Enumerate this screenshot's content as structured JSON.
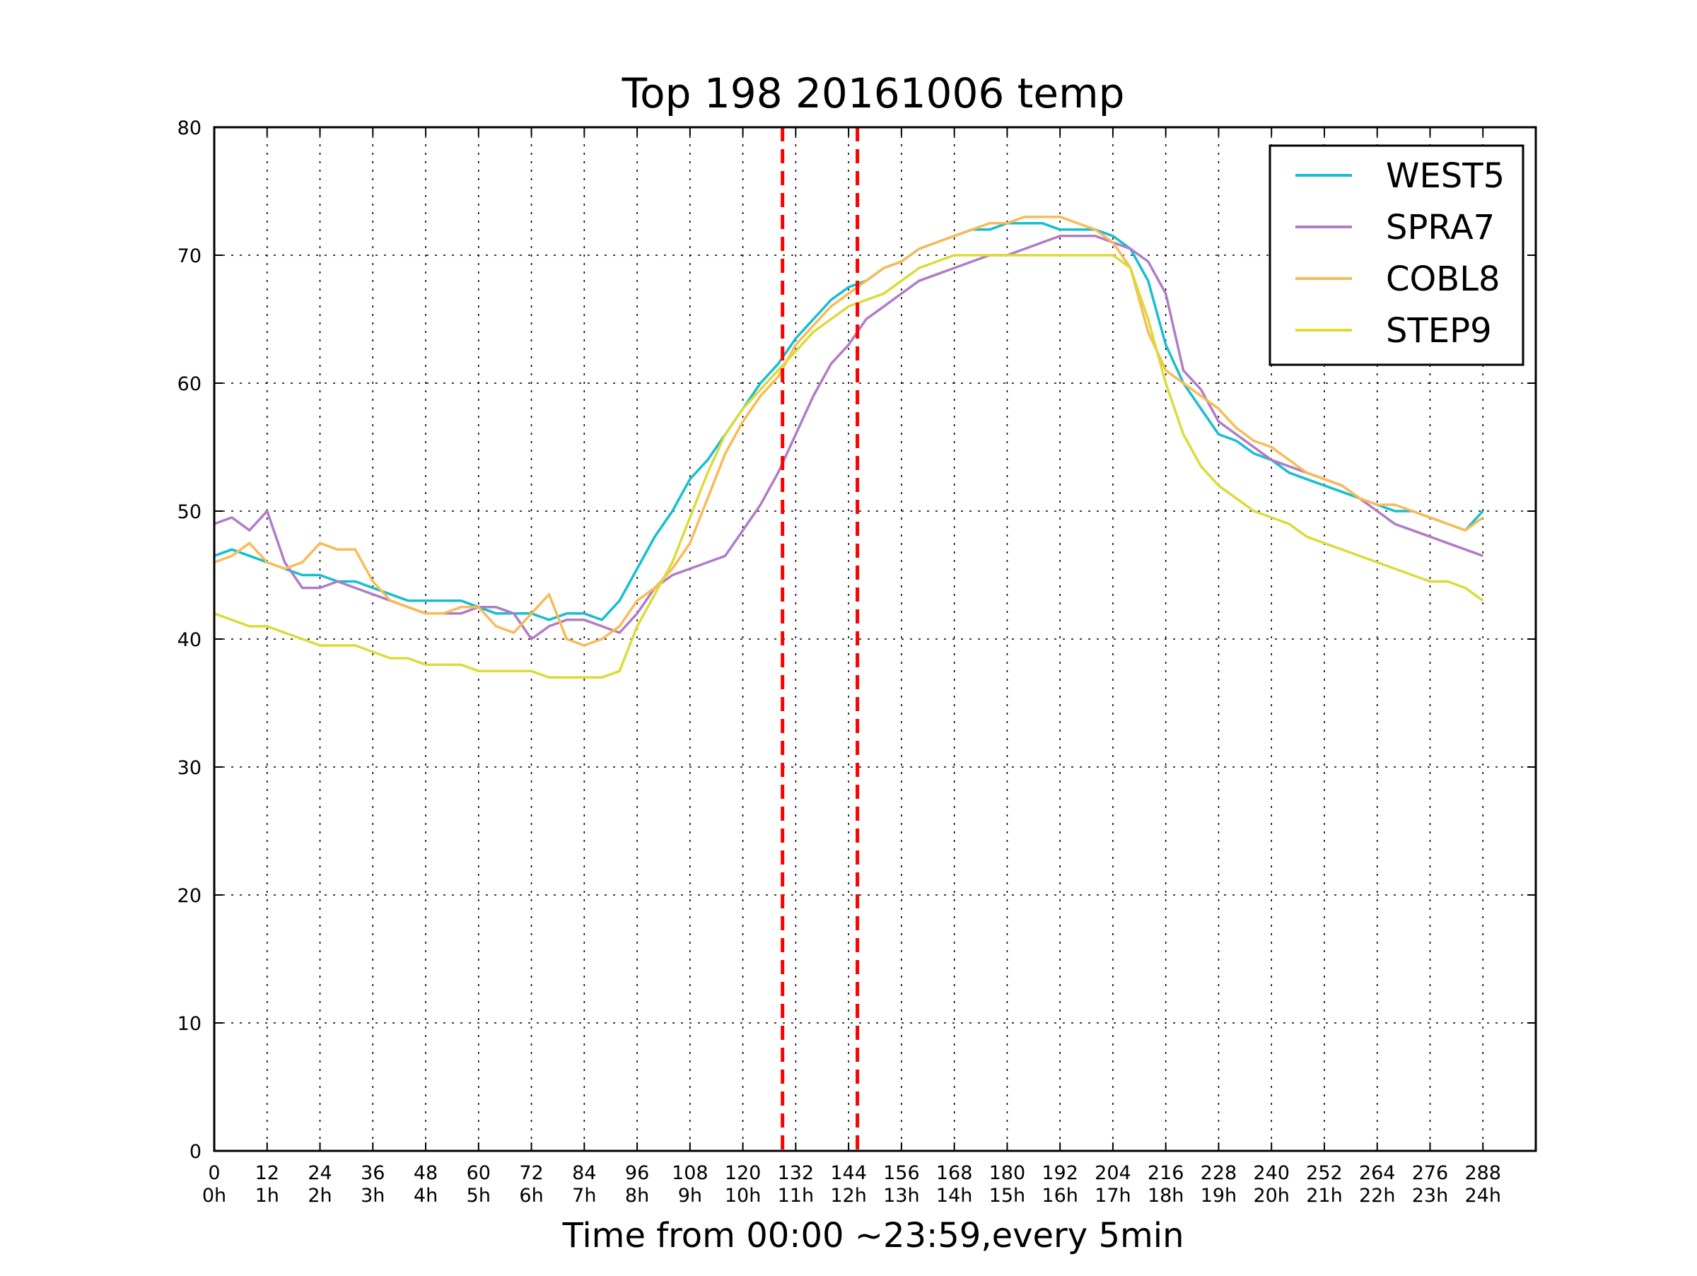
{
  "chart_data": {
    "type": "line",
    "title": "Top 198 20161006 temp",
    "xlabel": "Time from 00:00 ~23:59,every 5min",
    "ylabel": "",
    "xlim": [
      0,
      300
    ],
    "ylim": [
      0,
      80
    ],
    "grid": true,
    "legend_position": "top-right",
    "x_ticks": [
      0,
      12,
      24,
      36,
      48,
      60,
      72,
      84,
      96,
      108,
      120,
      132,
      144,
      156,
      168,
      180,
      192,
      204,
      216,
      228,
      240,
      252,
      264,
      276,
      288
    ],
    "x_tick_labels_top": [
      "0",
      "12",
      "24",
      "36",
      "48",
      "60",
      "72",
      "84",
      "96",
      "108",
      "120",
      "132",
      "144",
      "156",
      "168",
      "180",
      "192",
      "204",
      "216",
      "228",
      "240",
      "252",
      "264",
      "276",
      "288"
    ],
    "x_tick_labels_bottom": [
      "0h",
      "1h",
      "2h",
      "3h",
      "4h",
      "5h",
      "6h",
      "7h",
      "8h",
      "9h",
      "10h",
      "11h",
      "12h",
      "13h",
      "14h",
      "15h",
      "16h",
      "17h",
      "18h",
      "19h",
      "20h",
      "21h",
      "22h",
      "23h",
      "24h"
    ],
    "y_ticks": [
      0,
      10,
      20,
      30,
      40,
      50,
      60,
      70,
      80
    ],
    "y_tick_labels": [
      "0",
      "10",
      "20",
      "30",
      "40",
      "50",
      "60",
      "70",
      "80"
    ],
    "vertical_markers": [
      {
        "x": 129,
        "color": "#ff0000",
        "style": "dashed"
      },
      {
        "x": 146,
        "color": "#ff0000",
        "style": "dashed"
      }
    ],
    "series": [
      {
        "name": "WEST5",
        "color": "#17becf",
        "x": [
          0,
          4,
          8,
          12,
          16,
          20,
          24,
          28,
          32,
          36,
          40,
          44,
          48,
          52,
          56,
          60,
          64,
          68,
          72,
          76,
          80,
          84,
          88,
          92,
          96,
          100,
          104,
          108,
          112,
          116,
          120,
          124,
          128,
          132,
          136,
          140,
          144,
          148,
          152,
          156,
          160,
          164,
          168,
          172,
          176,
          180,
          184,
          188,
          192,
          196,
          200,
          204,
          208,
          212,
          216,
          220,
          224,
          228,
          232,
          236,
          240,
          244,
          248,
          252,
          256,
          260,
          264,
          268,
          272,
          276,
          280,
          284,
          288
        ],
        "values": [
          46.5,
          47,
          46.5,
          46,
          45.5,
          45,
          45,
          44.5,
          44.5,
          44,
          43.5,
          43,
          43,
          43,
          43,
          42.5,
          42,
          42,
          42,
          41.5,
          42,
          42,
          41.5,
          43,
          45.5,
          48,
          50,
          52.5,
          54,
          56,
          58,
          60,
          61.5,
          63.5,
          65,
          66.5,
          67.5,
          68,
          69,
          69.5,
          70.5,
          71,
          71.5,
          72,
          72,
          72.5,
          72.5,
          72.5,
          72,
          72,
          72,
          71.5,
          70.5,
          68,
          63,
          60,
          58,
          56,
          55.5,
          54.5,
          54,
          53,
          52.5,
          52,
          51.5,
          51,
          50.5,
          50,
          50,
          49.5,
          49,
          48.5,
          50
        ]
      },
      {
        "name": "SPRA7",
        "color": "#b07cc6",
        "x": [
          0,
          4,
          8,
          12,
          16,
          20,
          24,
          28,
          32,
          36,
          40,
          44,
          48,
          52,
          56,
          60,
          64,
          68,
          72,
          76,
          80,
          84,
          88,
          92,
          96,
          100,
          104,
          108,
          112,
          116,
          120,
          124,
          128,
          132,
          136,
          140,
          144,
          148,
          152,
          156,
          160,
          164,
          168,
          172,
          176,
          180,
          184,
          188,
          192,
          196,
          200,
          204,
          208,
          212,
          216,
          220,
          224,
          228,
          232,
          236,
          240,
          244,
          248,
          252,
          256,
          260,
          264,
          268,
          272,
          276,
          280,
          284,
          288
        ],
        "values": [
          49,
          49.5,
          48.5,
          50,
          46,
          44,
          44,
          44.5,
          44,
          43.5,
          43,
          42.5,
          42,
          42,
          42,
          42.5,
          42.5,
          42,
          40,
          41,
          41.5,
          41.5,
          41,
          40.5,
          42,
          44,
          45,
          45.5,
          46,
          46.5,
          48.5,
          50.5,
          53,
          56,
          59,
          61.5,
          63,
          65,
          66,
          67,
          68,
          68.5,
          69,
          69.5,
          70,
          70,
          70.5,
          71,
          71.5,
          71.5,
          71.5,
          71,
          70.5,
          69.5,
          67,
          61,
          59.5,
          57,
          56,
          55,
          54,
          53.5,
          53,
          52.5,
          52,
          51,
          50,
          49,
          48.5,
          48,
          47.5,
          47,
          46.5
        ]
      },
      {
        "name": "COBL8",
        "color": "#f8bb56",
        "x": [
          0,
          4,
          8,
          12,
          16,
          20,
          24,
          28,
          32,
          36,
          40,
          44,
          48,
          52,
          56,
          60,
          64,
          68,
          72,
          76,
          80,
          84,
          88,
          92,
          96,
          100,
          104,
          108,
          112,
          116,
          120,
          124,
          128,
          132,
          136,
          140,
          144,
          148,
          152,
          156,
          160,
          164,
          168,
          172,
          176,
          180,
          184,
          188,
          192,
          196,
          200,
          204,
          208,
          212,
          216,
          220,
          224,
          228,
          232,
          236,
          240,
          244,
          248,
          252,
          256,
          260,
          264,
          268,
          272,
          276,
          280,
          284,
          288
        ],
        "values": [
          46,
          46.5,
          47.5,
          46,
          45.5,
          46,
          47.5,
          47,
          47,
          44.5,
          43,
          42.5,
          42,
          42,
          42.5,
          42.5,
          41,
          40.5,
          42,
          43.5,
          40,
          39.5,
          40,
          41,
          43,
          44,
          45.5,
          47.5,
          51,
          54.5,
          57,
          59,
          60.5,
          63,
          64.5,
          66,
          67,
          68,
          69,
          69.5,
          70.5,
          71,
          71.5,
          72,
          72.5,
          72.5,
          73,
          73,
          73,
          72.5,
          72,
          71,
          69,
          64,
          61,
          60,
          59,
          58,
          56.5,
          55.5,
          55,
          54,
          53,
          52.5,
          52,
          51,
          50.5,
          50.5,
          50,
          49.5,
          49,
          48.5,
          49.5
        ]
      },
      {
        "name": "STEP9",
        "color": "#dbdb3a",
        "x": [
          0,
          4,
          8,
          12,
          16,
          20,
          24,
          28,
          32,
          36,
          40,
          44,
          48,
          52,
          56,
          60,
          64,
          68,
          72,
          76,
          80,
          84,
          88,
          92,
          96,
          100,
          104,
          108,
          112,
          116,
          120,
          124,
          128,
          132,
          136,
          140,
          144,
          148,
          152,
          156,
          160,
          164,
          168,
          172,
          176,
          180,
          184,
          188,
          192,
          196,
          200,
          204,
          208,
          212,
          216,
          220,
          224,
          228,
          232,
          236,
          240,
          244,
          248,
          252,
          256,
          260,
          264,
          268,
          272,
          276,
          280,
          284,
          288
        ],
        "values": [
          42,
          41.5,
          41,
          41,
          40.5,
          40,
          39.5,
          39.5,
          39.5,
          39,
          38.5,
          38.5,
          38,
          38,
          38,
          37.5,
          37.5,
          37.5,
          37.5,
          37,
          37,
          37,
          37,
          37.5,
          41,
          43.5,
          46,
          49.5,
          53,
          56,
          58,
          59.5,
          61,
          62.5,
          64,
          65,
          66,
          66.5,
          67,
          68,
          69,
          69.5,
          70,
          70,
          70,
          70,
          70,
          70,
          70,
          70,
          70,
          70,
          69,
          65,
          60,
          56,
          53.5,
          52,
          51,
          50,
          49.5,
          49,
          48,
          47.5,
          47,
          46.5,
          46,
          45.5,
          45,
          44.5,
          44.5,
          44,
          43
        ]
      }
    ]
  }
}
